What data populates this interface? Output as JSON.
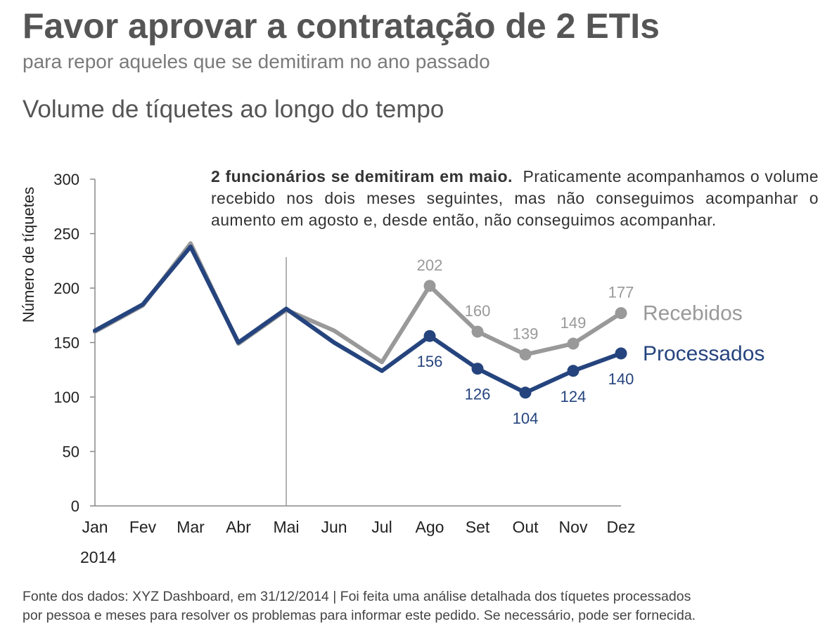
{
  "header": {
    "title": "Favor aprovar a contratação de 2 ETIs",
    "subtitle": "para repor aqueles que se demitiram no ano passado"
  },
  "annotation": {
    "bold": "2 funcionários se demitiram em maio.",
    "text": "Praticamente acompanhamos o volume recebido nos dois meses seguintes, mas não conseguimos acompanhar o aumento em agosto e, desde então, não conseguimos acompanhar."
  },
  "footer": {
    "line1": "Fonte dos dados: XYZ Dashboard, em 31/12/2014 | Foi feita uma análise detalhada dos tíquetes processados",
    "line2": "por pessoa e meses para resolver os problemas para informar este pedido. Se necessário, pode ser fornecida."
  },
  "chart_data": {
    "type": "line",
    "title": "Volume de tíquetes ao longo do tempo",
    "ylabel": "Número de tíquetes",
    "xlabel": "",
    "year_label": "2014",
    "categories": [
      "Jan",
      "Fev",
      "Mar",
      "Abr",
      "Mai",
      "Jun",
      "Jul",
      "Ago",
      "Set",
      "Out",
      "Nov",
      "Dez"
    ],
    "ylim": [
      0,
      300
    ],
    "yticks": [
      0,
      50,
      100,
      150,
      200,
      250,
      300
    ],
    "grid": false,
    "marker_line_category": "Mai",
    "series": [
      {
        "name": "Recebidos",
        "color": "#999999",
        "values": [
          160,
          184,
          241,
          149,
          180,
          161,
          132,
          202,
          160,
          139,
          149,
          177
        ],
        "labeled_from_index": 7,
        "label_position": "above"
      },
      {
        "name": "Processados",
        "color": "#25447e",
        "values": [
          161,
          185,
          238,
          150,
          181,
          150,
          124,
          156,
          126,
          104,
          124,
          140
        ],
        "labeled_from_index": 7,
        "label_position": "below"
      }
    ],
    "axis_color": "#888888",
    "text_color": "#222222"
  }
}
